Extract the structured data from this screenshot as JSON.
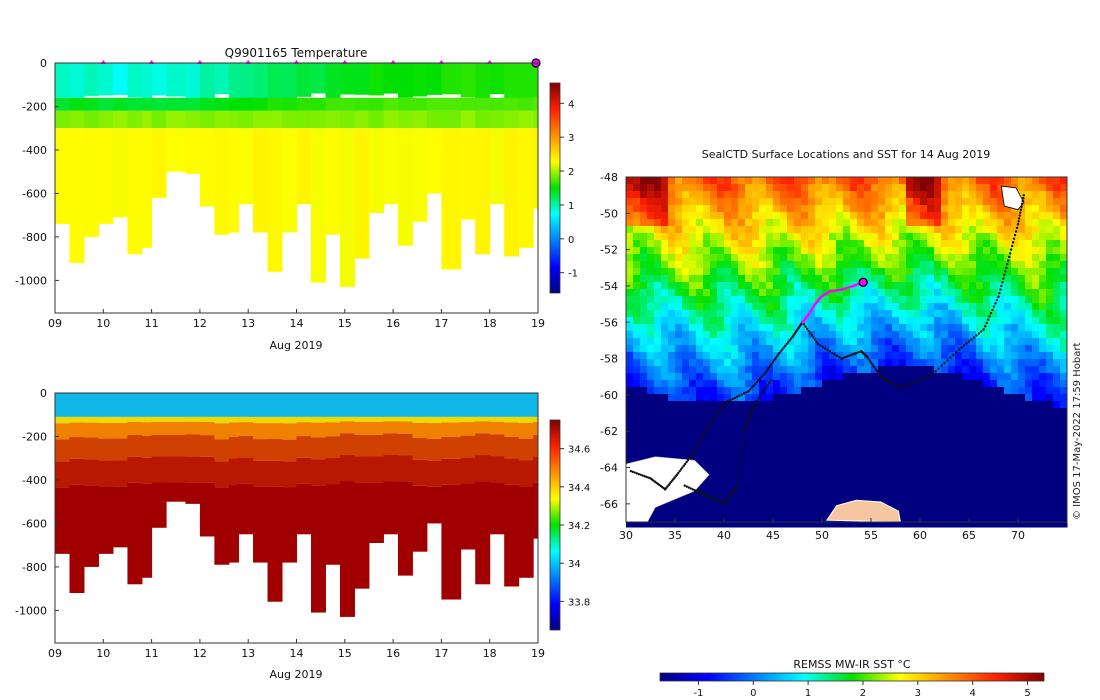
{
  "credit": "© IMOS 17-May-2022 17:59 Hobart",
  "chart_data": [
    {
      "id": "temperature",
      "type": "heatmap",
      "title": "Q9901165  Temperature",
      "xlabel": "Aug 2019",
      "x_ticks": [
        9,
        10,
        11,
        12,
        13,
        14,
        15,
        16,
        17,
        18,
        19
      ],
      "x_tick_labels": [
        "09",
        "10",
        "11",
        "12",
        "13",
        "14",
        "15",
        "16",
        "17",
        "18",
        "19"
      ],
      "xlim": [
        9,
        19
      ],
      "ylim": [
        -1150,
        0
      ],
      "y_ticks": [
        0,
        -200,
        -400,
        -600,
        -800,
        -1000
      ],
      "y_tick_labels": [
        "0",
        "-200",
        "-400",
        "-600",
        "-800",
        "-1000"
      ],
      "colorbar": {
        "range": [
          -1.6,
          4.6
        ],
        "ticks": [
          -1,
          0,
          1,
          2,
          3,
          4
        ],
        "tick_labels": [
          "-1",
          "0",
          "1",
          "2",
          "3",
          "4"
        ]
      },
      "surface_markers_x": [
        10,
        11,
        12,
        13,
        14,
        15,
        16,
        17,
        18
      ],
      "profiles": [
        {
          "t": 9.0,
          "depth": 740,
          "surf": 0.9,
          "deep": 2.3
        },
        {
          "t": 9.3,
          "depth": 920,
          "surf": 0.9,
          "deep": 2.3
        },
        {
          "t": 9.6,
          "depth": 800,
          "surf": 0.9,
          "deep": 2.3
        },
        {
          "t": 9.9,
          "depth": 740,
          "surf": 0.85,
          "deep": 2.3
        },
        {
          "t": 10.2,
          "depth": 710,
          "surf": 0.8,
          "deep": 2.3
        },
        {
          "t": 10.5,
          "depth": 880,
          "surf": 0.85,
          "deep": 2.3
        },
        {
          "t": 10.8,
          "depth": 850,
          "surf": 0.9,
          "deep": 2.3
        },
        {
          "t": 11.0,
          "depth": 620,
          "surf": 0.8,
          "deep": 2.3
        },
        {
          "t": 11.3,
          "depth": 500,
          "surf": 0.9,
          "deep": 2.3
        },
        {
          "t": 11.7,
          "depth": 510,
          "surf": 0.85,
          "deep": 2.3
        },
        {
          "t": 12.0,
          "depth": 660,
          "surf": 1.0,
          "deep": 2.3
        },
        {
          "t": 12.3,
          "depth": 790,
          "surf": 1.0,
          "deep": 2.3
        },
        {
          "t": 12.6,
          "depth": 780,
          "surf": 1.1,
          "deep": 2.3
        },
        {
          "t": 12.8,
          "depth": 650,
          "surf": 1.1,
          "deep": 2.3
        },
        {
          "t": 13.1,
          "depth": 780,
          "surf": 1.2,
          "deep": 2.3
        },
        {
          "t": 13.4,
          "depth": 960,
          "surf": 1.2,
          "deep": 2.3
        },
        {
          "t": 13.7,
          "depth": 780,
          "surf": 1.3,
          "deep": 2.3
        },
        {
          "t": 14.0,
          "depth": 650,
          "surf": 1.3,
          "deep": 2.3
        },
        {
          "t": 14.3,
          "depth": 1010,
          "surf": 1.3,
          "deep": 2.3
        },
        {
          "t": 14.6,
          "depth": 790,
          "surf": 1.4,
          "deep": 2.3
        },
        {
          "t": 14.9,
          "depth": 1030,
          "surf": 1.4,
          "deep": 2.3
        },
        {
          "t": 15.2,
          "depth": 900,
          "surf": 1.4,
          "deep": 2.3
        },
        {
          "t": 15.5,
          "depth": 690,
          "surf": 1.5,
          "deep": 2.3
        },
        {
          "t": 15.8,
          "depth": 650,
          "surf": 1.5,
          "deep": 2.3
        },
        {
          "t": 16.1,
          "depth": 840,
          "surf": 1.55,
          "deep": 2.3
        },
        {
          "t": 16.4,
          "depth": 730,
          "surf": 1.55,
          "deep": 2.3
        },
        {
          "t": 16.7,
          "depth": 600,
          "surf": 1.55,
          "deep": 2.3
        },
        {
          "t": 17.0,
          "depth": 950,
          "surf": 1.6,
          "deep": 2.3
        },
        {
          "t": 17.4,
          "depth": 720,
          "surf": 1.6,
          "deep": 2.3
        },
        {
          "t": 17.7,
          "depth": 880,
          "surf": 1.6,
          "deep": 2.3
        },
        {
          "t": 18.0,
          "depth": 650,
          "surf": 1.6,
          "deep": 2.3
        },
        {
          "t": 18.3,
          "depth": 890,
          "surf": 1.6,
          "deep": 2.3
        },
        {
          "t": 18.6,
          "depth": 850,
          "surf": 1.6,
          "deep": 2.3
        },
        {
          "t": 18.9,
          "depth": 670,
          "surf": 1.55,
          "deep": 2.3
        }
      ]
    },
    {
      "id": "salinity",
      "type": "heatmap",
      "title": "",
      "xlabel": "Aug 2019",
      "x_ticks": [
        9,
        10,
        11,
        12,
        13,
        14,
        15,
        16,
        17,
        18,
        19
      ],
      "x_tick_labels": [
        "09",
        "10",
        "11",
        "12",
        "13",
        "14",
        "15",
        "16",
        "17",
        "18",
        "19"
      ],
      "xlim": [
        9,
        19
      ],
      "ylim": [
        -1150,
        0
      ],
      "y_ticks": [
        0,
        -200,
        -400,
        -600,
        -800,
        -1000
      ],
      "y_tick_labels": [
        "0",
        "-200",
        "-400",
        "-600",
        "-800",
        "-1000"
      ],
      "colorbar": {
        "range": [
          33.65,
          34.75
        ],
        "ticks": [
          33.8,
          34.0,
          34.2,
          34.4,
          34.6
        ],
        "tick_labels": [
          "33.8",
          "34",
          "34.2",
          "34.4",
          "34.6"
        ]
      },
      "surface_value": 33.95,
      "deep_value": 34.72
    },
    {
      "id": "sst-map",
      "type": "heatmap",
      "title": "SealCTD Surface Locations and SST for 14 Aug 2019",
      "xlim": [
        30,
        75
      ],
      "ylim": [
        -67,
        -48
      ],
      "x_ticks": [
        30,
        35,
        40,
        45,
        50,
        55,
        60,
        65,
        70
      ],
      "x_tick_labels": [
        "30",
        "35",
        "40",
        "45",
        "50",
        "55",
        "60",
        "65",
        "70"
      ],
      "y_ticks": [
        -48,
        -50,
        -52,
        -54,
        -56,
        -58,
        -60,
        -62,
        -64,
        -66
      ],
      "y_tick_labels": [
        "-48",
        "-50",
        "-52",
        "-54",
        "-56",
        "-58",
        "-60",
        "-62",
        "-64",
        "-66"
      ],
      "colorbar": {
        "label": "REMSS MW-IR SST °C",
        "range": [
          -1.7,
          5.3
        ],
        "ticks": [
          -1,
          0,
          1,
          2,
          3,
          4,
          5
        ],
        "tick_labels": [
          "-1",
          "0",
          "1",
          "2",
          "3",
          "4",
          "5"
        ]
      },
      "current_position": {
        "lon": 54.2,
        "lat": -53.8
      },
      "recent_track": [
        [
          48.0,
          -56.0
        ],
        [
          48.6,
          -55.6
        ],
        [
          49.3,
          -55.0
        ],
        [
          49.9,
          -54.6
        ],
        [
          50.8,
          -54.3
        ],
        [
          52.0,
          -54.2
        ],
        [
          53.2,
          -54.0
        ],
        [
          54.2,
          -53.8
        ]
      ],
      "history_track": [
        [
          30.5,
          -64.2
        ],
        [
          32.5,
          -64.6
        ],
        [
          34.0,
          -65.2
        ],
        [
          35.2,
          -64.4
        ],
        [
          36.6,
          -63.4
        ],
        [
          38.3,
          -61.8
        ],
        [
          40.2,
          -60.4
        ],
        [
          42.5,
          -59.8
        ],
        [
          44.2,
          -58.8
        ],
        [
          45.5,
          -57.8
        ],
        [
          47.0,
          -56.8
        ],
        [
          48.0,
          -56.0
        ],
        [
          49.6,
          -57.2
        ],
        [
          52.0,
          -58.0
        ],
        [
          54.0,
          -57.6
        ],
        [
          54.6,
          -57.9
        ],
        [
          56.0,
          -59.0
        ],
        [
          58.0,
          -59.6
        ],
        [
          61.0,
          -59.0
        ],
        [
          64.0,
          -57.5
        ],
        [
          66.5,
          -56.4
        ],
        [
          68.0,
          -54.6
        ],
        [
          69.0,
          -52.6
        ],
        [
          70.0,
          -50.6
        ],
        [
          70.6,
          -49.0
        ],
        [
          36.0,
          -65.0
        ],
        [
          38.0,
          -65.5
        ],
        [
          40.0,
          -66.0
        ],
        [
          41.4,
          -65.0
        ],
        [
          42.0,
          -62.0
        ],
        [
          43.0,
          -60.6
        ],
        [
          44.8,
          -59.2
        ]
      ],
      "land_white": [
        {
          "lon": 33.0,
          "lat": -64.8
        },
        {
          "lon": 70.0,
          "lat": -49.5
        }
      ],
      "land_tan": {
        "lon": 54.5,
        "lat": -66.5
      }
    }
  ]
}
